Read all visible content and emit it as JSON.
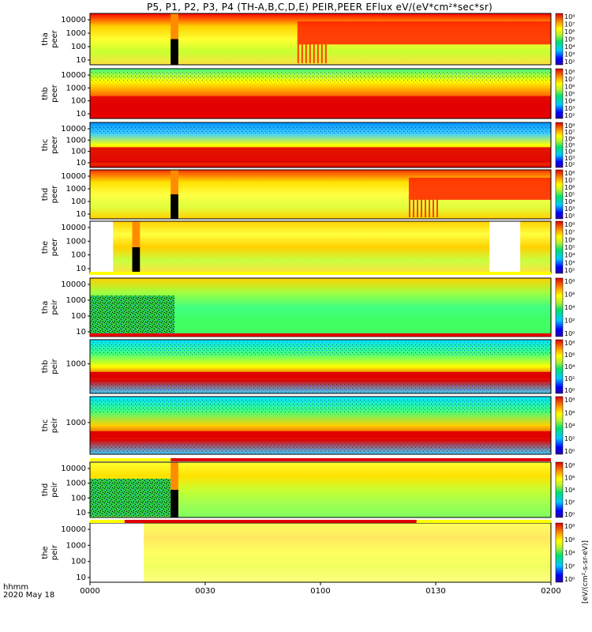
{
  "chart_data": {
    "type": "heatmap",
    "title": "P5, P1, P2, P3, P4 (TH-A,B,C,D,E) PEIR,PEER EFlux eV/(eV*cm²*sec*sr)",
    "colorbar_label": "[eV/(cm²-s-sr-eV)]",
    "x_axis": {
      "label_line1": "hhmm",
      "label_line2": "2020 May 18",
      "ticks": [
        "0000",
        "0030",
        "0100",
        "0130",
        "0200"
      ],
      "range_minutes": [
        0,
        120
      ]
    },
    "colorbar_ticks": [
      "10²",
      "10³",
      "10⁴",
      "10⁵",
      "10⁶",
      "10⁷",
      "10⁸"
    ],
    "colorbar_ticks_ion": [
      "10⁰",
      "10²",
      "10⁴",
      "10⁶",
      "10⁸"
    ],
    "panels": [
      {
        "label1": "tha",
        "label2": "peer",
        "yticks": [
          "10000",
          "1000",
          "100",
          "10"
        ],
        "species": "electron",
        "features": {
          "gap_minutes": [
            21,
            23
          ],
          "onset_minutes": 54,
          "high_band": "above 1000 eV"
        }
      },
      {
        "label1": "thb",
        "label2": "peer",
        "yticks": [
          "10000",
          "1000",
          "100",
          "10"
        ],
        "species": "electron",
        "features": {
          "high_band": "10-100 eV"
        }
      },
      {
        "label1": "thc",
        "label2": "peer",
        "yticks": [
          "10000",
          "1000",
          "100",
          "10"
        ],
        "species": "electron",
        "features": {
          "high_band": "10-100 eV"
        }
      },
      {
        "label1": "thd",
        "label2": "peer",
        "yticks": [
          "10000",
          "1000",
          "100",
          "10"
        ],
        "species": "electron",
        "features": {
          "gap_minutes": [
            21,
            23
          ],
          "onset_minutes": 83,
          "high_band": "above 1000 eV"
        }
      },
      {
        "label1": "the",
        "label2": "peer",
        "yticks": [
          "10000",
          "1000",
          "100",
          "10"
        ],
        "species": "electron",
        "features": {
          "gap_minutes": [
            11,
            13
          ],
          "nodata_minutes": [
            [
              0,
              6
            ],
            [
              104,
              112
            ]
          ]
        }
      },
      {
        "label1": "tha",
        "label2": "peir",
        "yticks": [
          "10000",
          "1000",
          "100",
          "10"
        ],
        "species": "ion",
        "features": {
          "noisy_until_minutes": 22
        }
      },
      {
        "label1": "thb",
        "label2": "peir",
        "yticks": [
          "1000"
        ],
        "species": "ion",
        "features": {
          "high_band": "near 100 eV"
        }
      },
      {
        "label1": "thc",
        "label2": "peir",
        "yticks": [
          "1000"
        ],
        "species": "ion",
        "features": {
          "high_band": "near 100 eV"
        }
      },
      {
        "label1": "thd",
        "label2": "peir",
        "yticks": [
          "10000",
          "1000",
          "100",
          "10"
        ],
        "species": "ion",
        "features": {
          "gap_minutes": [
            21,
            23
          ],
          "noisy_until_minutes": 21
        }
      },
      {
        "label1": "the",
        "label2": "peir",
        "yticks": [
          "10000",
          "1000",
          "100",
          "10"
        ],
        "species": "ion",
        "features": {
          "nodata_minutes": [
            [
              0,
              14
            ]
          ]
        }
      }
    ]
  }
}
